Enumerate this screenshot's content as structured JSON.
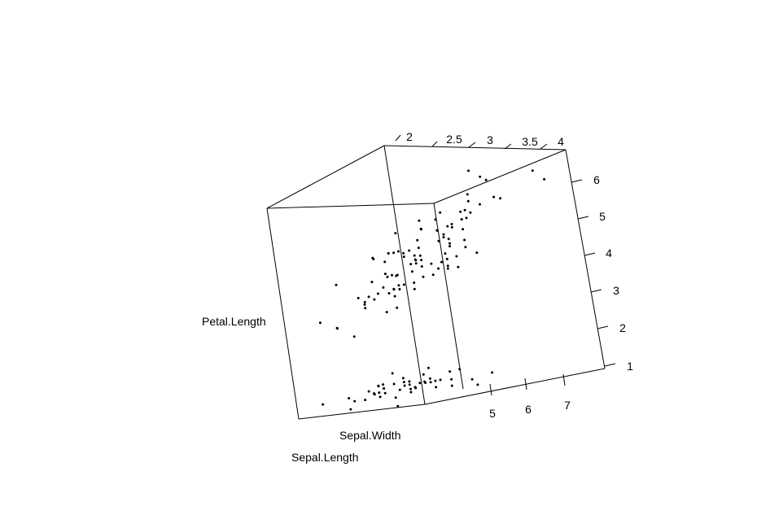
{
  "chart_data": {
    "type": "scatter3d",
    "axes": {
      "x": {
        "label": "Sepal.Length",
        "ticks": [
          "5",
          "6",
          "7"
        ],
        "range": [
          4.3,
          7.9
        ]
      },
      "y": {
        "label": "Sepal.Width",
        "ticks": [
          "2",
          "2.5",
          "3",
          "3.5",
          "4"
        ],
        "range": [
          2.0,
          4.4
        ]
      },
      "z": {
        "label": "Petal.Length",
        "ticks": [
          "1",
          "2",
          "3",
          "4",
          "5",
          "6"
        ],
        "range": [
          1.0,
          6.9
        ]
      }
    },
    "box": true,
    "grid": false,
    "points": [
      [
        5.1,
        3.5,
        1.4
      ],
      [
        4.9,
        3.0,
        1.4
      ],
      [
        4.7,
        3.2,
        1.3
      ],
      [
        4.6,
        3.1,
        1.5
      ],
      [
        5.0,
        3.6,
        1.4
      ],
      [
        5.4,
        3.9,
        1.7
      ],
      [
        4.6,
        3.4,
        1.4
      ],
      [
        5.0,
        3.4,
        1.5
      ],
      [
        4.4,
        2.9,
        1.4
      ],
      [
        4.9,
        3.1,
        1.5
      ],
      [
        5.4,
        3.7,
        1.5
      ],
      [
        4.8,
        3.4,
        1.6
      ],
      [
        4.8,
        3.0,
        1.4
      ],
      [
        4.3,
        3.0,
        1.1
      ],
      [
        5.8,
        4.0,
        1.2
      ],
      [
        5.7,
        4.4,
        1.5
      ],
      [
        5.4,
        3.9,
        1.3
      ],
      [
        5.1,
        3.5,
        1.4
      ],
      [
        5.7,
        3.8,
        1.7
      ],
      [
        5.1,
        3.8,
        1.5
      ],
      [
        5.4,
        3.4,
        1.7
      ],
      [
        5.1,
        3.7,
        1.5
      ],
      [
        4.6,
        3.6,
        1.0
      ],
      [
        5.1,
        3.3,
        1.7
      ],
      [
        4.8,
        3.4,
        1.9
      ],
      [
        5.0,
        3.0,
        1.6
      ],
      [
        5.0,
        3.4,
        1.6
      ],
      [
        5.2,
        3.5,
        1.5
      ],
      [
        5.2,
        3.4,
        1.4
      ],
      [
        4.7,
        3.2,
        1.6
      ],
      [
        4.8,
        3.1,
        1.6
      ],
      [
        5.4,
        3.4,
        1.5
      ],
      [
        5.2,
        4.1,
        1.5
      ],
      [
        5.5,
        4.2,
        1.4
      ],
      [
        4.9,
        3.1,
        1.5
      ],
      [
        5.0,
        3.2,
        1.2
      ],
      [
        5.5,
        3.5,
        1.3
      ],
      [
        4.9,
        3.6,
        1.4
      ],
      [
        4.4,
        3.0,
        1.3
      ],
      [
        5.1,
        3.4,
        1.5
      ],
      [
        5.0,
        3.5,
        1.3
      ],
      [
        4.5,
        2.3,
        1.3
      ],
      [
        4.4,
        3.2,
        1.3
      ],
      [
        5.0,
        3.5,
        1.6
      ],
      [
        5.1,
        3.8,
        1.9
      ],
      [
        4.8,
        3.0,
        1.4
      ],
      [
        5.1,
        3.8,
        1.6
      ],
      [
        4.6,
        3.2,
        1.4
      ],
      [
        5.3,
        3.7,
        1.5
      ],
      [
        5.0,
        3.3,
        1.4
      ],
      [
        7.0,
        3.2,
        4.7
      ],
      [
        6.4,
        3.2,
        4.5
      ],
      [
        6.9,
        3.1,
        4.9
      ],
      [
        5.5,
        2.3,
        4.0
      ],
      [
        6.5,
        2.8,
        4.6
      ],
      [
        5.7,
        2.8,
        4.5
      ],
      [
        6.3,
        3.3,
        4.7
      ],
      [
        4.9,
        2.4,
        3.3
      ],
      [
        6.6,
        2.9,
        4.6
      ],
      [
        5.2,
        2.7,
        3.9
      ],
      [
        5.0,
        2.0,
        3.5
      ],
      [
        5.9,
        3.0,
        4.2
      ],
      [
        6.0,
        2.2,
        4.0
      ],
      [
        6.1,
        2.9,
        4.7
      ],
      [
        5.6,
        2.9,
        3.6
      ],
      [
        6.7,
        3.1,
        4.4
      ],
      [
        5.6,
        3.0,
        4.5
      ],
      [
        5.8,
        2.7,
        4.1
      ],
      [
        6.2,
        2.2,
        4.5
      ],
      [
        5.6,
        2.5,
        3.9
      ],
      [
        5.9,
        3.2,
        4.8
      ],
      [
        6.1,
        2.8,
        4.0
      ],
      [
        6.3,
        2.5,
        4.9
      ],
      [
        6.1,
        2.8,
        4.7
      ],
      [
        6.4,
        2.9,
        4.3
      ],
      [
        6.6,
        3.0,
        4.4
      ],
      [
        6.8,
        2.8,
        4.8
      ],
      [
        6.7,
        3.0,
        5.0
      ],
      [
        6.0,
        2.9,
        4.5
      ],
      [
        5.7,
        2.6,
        3.5
      ],
      [
        5.5,
        2.4,
        3.8
      ],
      [
        5.5,
        2.4,
        3.7
      ],
      [
        5.8,
        2.7,
        3.9
      ],
      [
        6.0,
        2.7,
        5.1
      ],
      [
        5.4,
        3.0,
        4.5
      ],
      [
        6.0,
        3.4,
        4.5
      ],
      [
        6.7,
        3.1,
        4.7
      ],
      [
        6.3,
        2.3,
        4.4
      ],
      [
        5.6,
        3.0,
        4.1
      ],
      [
        5.5,
        2.5,
        4.0
      ],
      [
        5.5,
        2.6,
        4.4
      ],
      [
        6.1,
        3.0,
        4.6
      ],
      [
        5.8,
        2.6,
        4.0
      ],
      [
        5.0,
        2.3,
        3.3
      ],
      [
        5.6,
        2.7,
        4.2
      ],
      [
        5.7,
        3.0,
        4.2
      ],
      [
        5.7,
        2.9,
        4.2
      ],
      [
        6.2,
        2.9,
        4.3
      ],
      [
        5.1,
        2.5,
        3.0
      ],
      [
        5.7,
        2.8,
        4.1
      ],
      [
        6.3,
        3.3,
        6.0
      ],
      [
        5.8,
        2.7,
        5.1
      ],
      [
        7.1,
        3.0,
        5.9
      ],
      [
        6.3,
        2.9,
        5.6
      ],
      [
        6.5,
        3.0,
        5.8
      ],
      [
        7.6,
        3.0,
        6.6
      ],
      [
        4.9,
        2.5,
        4.5
      ],
      [
        7.3,
        2.9,
        6.3
      ],
      [
        6.7,
        2.5,
        5.8
      ],
      [
        7.2,
        3.6,
        6.1
      ],
      [
        6.5,
        3.2,
        5.1
      ],
      [
        6.4,
        2.7,
        5.3
      ],
      [
        6.8,
        3.0,
        5.5
      ],
      [
        5.7,
        2.5,
        5.0
      ],
      [
        5.8,
        2.8,
        5.1
      ],
      [
        6.4,
        3.2,
        5.3
      ],
      [
        6.5,
        3.0,
        5.5
      ],
      [
        7.7,
        3.8,
        6.7
      ],
      [
        7.7,
        2.6,
        6.9
      ],
      [
        6.0,
        2.2,
        5.0
      ],
      [
        6.9,
        3.2,
        5.7
      ],
      [
        5.6,
        2.8,
        4.9
      ],
      [
        7.7,
        2.8,
        6.7
      ],
      [
        6.3,
        2.7,
        4.9
      ],
      [
        6.7,
        3.3,
        5.7
      ],
      [
        7.2,
        3.2,
        6.0
      ],
      [
        6.2,
        2.8,
        4.8
      ],
      [
        6.1,
        3.0,
        4.9
      ],
      [
        6.4,
        2.8,
        5.6
      ],
      [
        7.2,
        3.0,
        5.8
      ],
      [
        7.4,
        2.8,
        6.1
      ],
      [
        7.9,
        3.8,
        6.4
      ],
      [
        6.4,
        2.8,
        5.6
      ],
      [
        6.3,
        2.8,
        5.1
      ],
      [
        6.1,
        2.6,
        5.6
      ],
      [
        7.7,
        3.0,
        6.1
      ],
      [
        6.3,
        3.4,
        5.6
      ],
      [
        6.4,
        3.1,
        5.5
      ],
      [
        6.0,
        3.0,
        4.8
      ],
      [
        6.9,
        3.1,
        5.4
      ],
      [
        6.7,
        3.1,
        5.6
      ],
      [
        6.9,
        3.1,
        5.1
      ],
      [
        5.8,
        2.7,
        5.1
      ],
      [
        6.8,
        3.2,
        5.9
      ],
      [
        6.7,
        3.3,
        5.7
      ],
      [
        6.7,
        3.0,
        5.2
      ],
      [
        6.3,
        2.5,
        5.0
      ],
      [
        6.5,
        3.0,
        5.2
      ],
      [
        6.2,
        3.4,
        5.4
      ],
      [
        5.9,
        3.0,
        5.1
      ]
    ]
  }
}
